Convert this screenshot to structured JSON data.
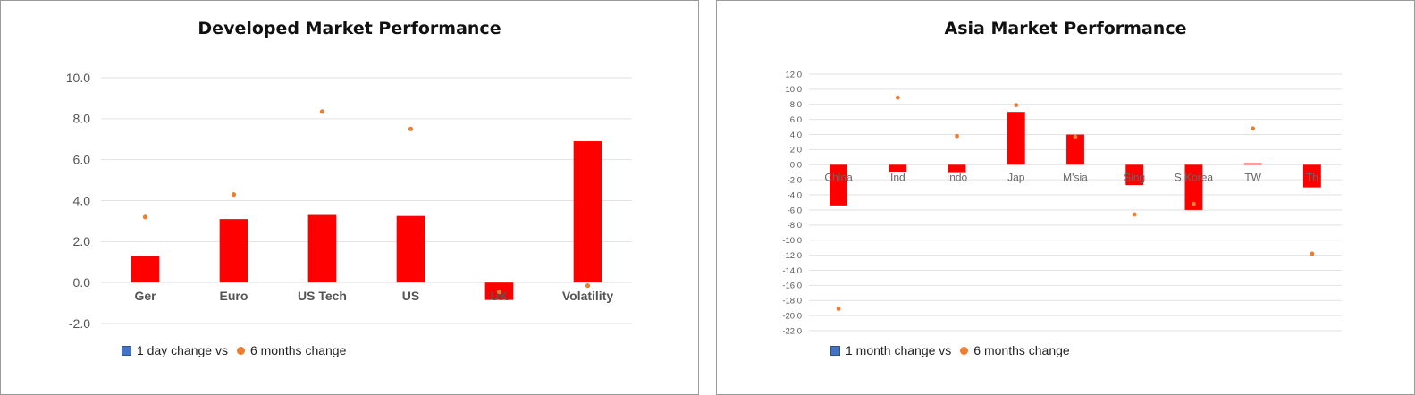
{
  "chart_data": [
    {
      "type": "bar",
      "title": "Developed Market Performance",
      "categories": [
        "Ger",
        "Euro",
        "US Tech",
        "US",
        "UK",
        "Volatility"
      ],
      "series": [
        {
          "name": "1 day change vs",
          "type": "bar",
          "color": "#ff0000",
          "values": [
            1.3,
            3.1,
            3.3,
            3.25,
            -0.85,
            6.9
          ]
        },
        {
          "name": "6 months change",
          "type": "scatter",
          "color": "#ed7d31",
          "values": [
            3.2,
            4.3,
            8.35,
            7.5,
            -0.45,
            -0.15
          ]
        }
      ],
      "yticks": [
        "10.0",
        "8.0",
        "6.0",
        "4.0",
        "2.0",
        "0.0",
        "-2.0"
      ],
      "ylim": [
        -2,
        10
      ],
      "grid": true,
      "legend": {
        "position": "bottom-left",
        "items": [
          "1 day change vs",
          "6 months change"
        ]
      }
    },
    {
      "type": "bar",
      "title": "Asia Market Performance",
      "categories": [
        "China",
        "Ind",
        "Indo",
        "Jap",
        "M'sia",
        "Sing",
        "S.Korea",
        "TW",
        "Th"
      ],
      "series": [
        {
          "name": "1 month change vs",
          "type": "bar",
          "color": "#ff0000",
          "values": [
            -5.4,
            -1.0,
            -1.1,
            7.0,
            4.0,
            -2.7,
            -6.0,
            0.2,
            -3.0
          ]
        },
        {
          "name": "6 months change",
          "type": "scatter",
          "color": "#ed7d31",
          "values": [
            -19.1,
            8.9,
            3.8,
            7.9,
            3.7,
            -6.6,
            -5.2,
            4.8,
            -11.8
          ]
        }
      ],
      "yticks": [
        "12.0",
        "10.0",
        "8.0",
        "6.0",
        "4.0",
        "2.0",
        "0.0",
        "-2.0",
        "-4.0",
        "-6.0",
        "-8.0",
        "-10.0",
        "-12.0",
        "-14.0",
        "-16.0",
        "-18.0",
        "-20.0",
        "-22.0"
      ],
      "ylim": [
        -22,
        12
      ],
      "grid": true,
      "legend": {
        "position": "bottom-left",
        "items": [
          "1 month change vs",
          "6 months change"
        ]
      }
    }
  ]
}
